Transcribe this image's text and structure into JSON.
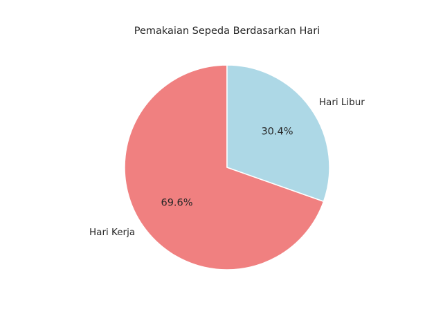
{
  "chart_data": {
    "type": "pie",
    "title": "Pemakaian Sepeda Berdasarkan Hari",
    "categories": [
      "Hari Kerja",
      "Hari Libur"
    ],
    "values": [
      69.6,
      30.4
    ],
    "value_labels": [
      "69.6%",
      "30.4%"
    ],
    "colors": [
      "#f08080",
      "#add8e6"
    ],
    "start_angle_deg": 90,
    "direction": "counterclockwise",
    "legend": "none",
    "grid": false
  }
}
